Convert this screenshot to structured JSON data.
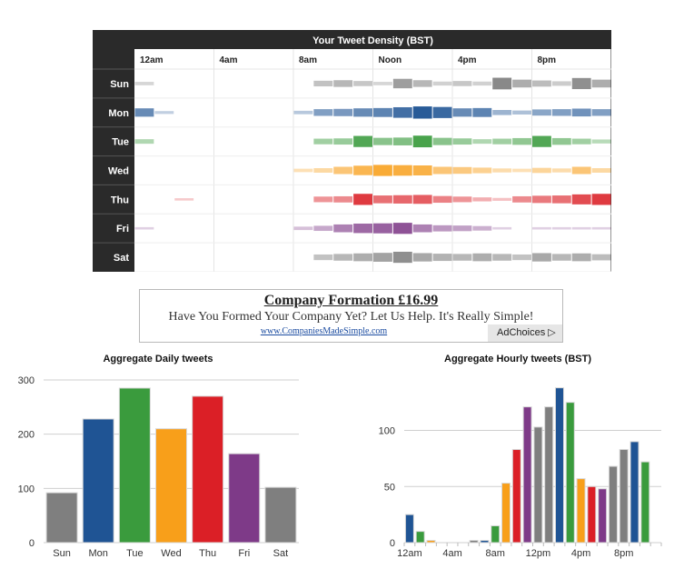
{
  "ad": {
    "headline": "Company Formation £16.99",
    "body": "Have You Formed Your Company Yet? Let Us Help. It's Really Simple!",
    "url": "www.CompaniesMadeSimple.com",
    "adchoices_label": "AdChoices"
  },
  "colors": {
    "Sun": "#7f7f7f",
    "Mon": "#1f5494",
    "Tue": "#3a9b3d",
    "Wed": "#f89f1a",
    "Thu": "#db1f26",
    "Fri": "#7e3a88",
    "Sat": "#7f7f7f",
    "header_bg": "#2a2a2a"
  },
  "chart_data": [
    {
      "type": "heatmap",
      "title": "Your Tweet Density (BST)",
      "x_tick_labels": [
        "12am",
        "4am",
        "8am",
        "Noon",
        "4pm",
        "8pm"
      ],
      "x_tick_hours": [
        0,
        4,
        8,
        12,
        16,
        20
      ],
      "rows": [
        "Sun",
        "Mon",
        "Tue",
        "Wed",
        "Thu",
        "Fri",
        "Sat"
      ],
      "hour_range": [
        0,
        24
      ],
      "series": [
        {
          "name": "Sun",
          "density": [
            0.15,
            0,
            0,
            0,
            0,
            0,
            0,
            0,
            0,
            0.35,
            0.45,
            0.3,
            0.15,
            0.7,
            0.45,
            0.2,
            0.3,
            0.2,
            0.9,
            0.55,
            0.4,
            0.25,
            0.85,
            0.55
          ]
        },
        {
          "name": "Mon",
          "density": [
            0.6,
            0.1,
            0,
            0,
            0,
            0,
            0,
            0,
            0.15,
            0.45,
            0.5,
            0.6,
            0.65,
            0.8,
            0.95,
            0.85,
            0.6,
            0.65,
            0.3,
            0.2,
            0.4,
            0.45,
            0.55,
            0.45
          ]
        },
        {
          "name": "Tue",
          "density": [
            0.25,
            0,
            0,
            0,
            0,
            0,
            0,
            0,
            0,
            0.35,
            0.4,
            0.85,
            0.5,
            0.55,
            0.9,
            0.5,
            0.4,
            0.25,
            0.35,
            0.45,
            0.85,
            0.45,
            0.35,
            0.2
          ]
        },
        {
          "name": "Wed",
          "density": [
            0,
            0,
            0,
            0,
            0,
            0,
            0,
            0,
            0.15,
            0.25,
            0.5,
            0.7,
            0.85,
            0.8,
            0.75,
            0.5,
            0.45,
            0.35,
            0.2,
            0.15,
            0.3,
            0.2,
            0.5,
            0.25
          ]
        },
        {
          "name": "Thu",
          "density": [
            0,
            0,
            0.05,
            0,
            0,
            0,
            0,
            0,
            0,
            0.35,
            0.4,
            0.85,
            0.55,
            0.6,
            0.65,
            0.45,
            0.35,
            0.2,
            0.1,
            0.4,
            0.5,
            0.55,
            0.75,
            0.85
          ]
        },
        {
          "name": "Fri",
          "density": [
            0.05,
            0,
            0,
            0,
            0,
            0,
            0,
            0,
            0.15,
            0.3,
            0.55,
            0.7,
            0.75,
            0.85,
            0.55,
            0.4,
            0.35,
            0.25,
            0.05,
            0,
            0.05,
            0.05,
            0.05,
            0.05
          ]
        },
        {
          "name": "Sat",
          "density": [
            0,
            0,
            0,
            0,
            0,
            0,
            0,
            0,
            0,
            0.35,
            0.45,
            0.55,
            0.65,
            0.85,
            0.6,
            0.5,
            0.45,
            0.55,
            0.45,
            0.35,
            0.6,
            0.45,
            0.55,
            0.4
          ]
        }
      ]
    },
    {
      "type": "bar",
      "title": "Aggregate Daily tweets",
      "categories": [
        "Sun",
        "Mon",
        "Tue",
        "Wed",
        "Thu",
        "Fri",
        "Sat"
      ],
      "values": [
        92,
        228,
        285,
        210,
        270,
        164,
        102
      ],
      "ylim": [
        0,
        300
      ],
      "yticks": [
        0,
        100,
        200,
        300
      ],
      "grid": true
    },
    {
      "type": "bar",
      "title": "Aggregate Hourly tweets (BST)",
      "categories": [
        "0",
        "1",
        "2",
        "3",
        "4",
        "5",
        "6",
        "7",
        "8",
        "9",
        "10",
        "11",
        "12",
        "13",
        "14",
        "15",
        "16",
        "17",
        "18",
        "19",
        "20",
        "21",
        "22",
        "23"
      ],
      "x_tick_labels": [
        "12am",
        "4am",
        "8am",
        "12pm",
        "4pm",
        "8pm"
      ],
      "x_tick_hours": [
        0,
        4,
        8,
        12,
        16,
        20
      ],
      "values": [
        25,
        10,
        2,
        0,
        0,
        0,
        2,
        2,
        15,
        53,
        83,
        121,
        103,
        121,
        138,
        125,
        57,
        50,
        48,
        68,
        83,
        90,
        72,
        0
      ],
      "ylim": [
        0,
        145
      ],
      "yticks": [
        0,
        50,
        100
      ],
      "grid": true
    }
  ]
}
